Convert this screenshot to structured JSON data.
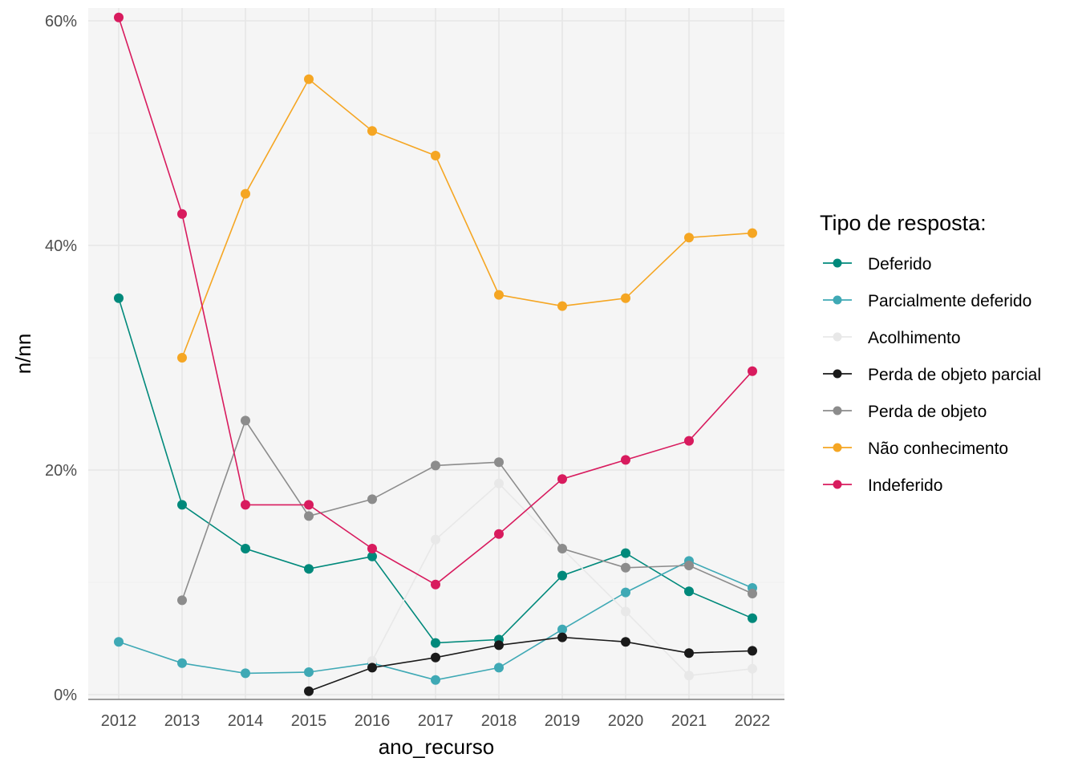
{
  "chart_data": {
    "type": "line",
    "title": "",
    "xlabel": "ano_recurso",
    "ylabel": "n/nn",
    "x": [
      2012,
      2013,
      2014,
      2015,
      2016,
      2017,
      2018,
      2019,
      2020,
      2021,
      2022
    ],
    "x_tick_labels": [
      "2012",
      "2013",
      "2014",
      "2015",
      "2016",
      "2017",
      "2018",
      "2019",
      "2020",
      "2021",
      "2022"
    ],
    "ylim": [
      0,
      0.6
    ],
    "y_ticks": [
      0,
      0.2,
      0.4,
      0.6
    ],
    "y_tick_labels": [
      "0%",
      "20%",
      "40%",
      "60%"
    ],
    "grid": true,
    "legend": {
      "title": "Tipo de resposta:",
      "position": "right"
    },
    "series": [
      {
        "name": "Deferido",
        "color": "#00897b",
        "values": [
          0.353,
          0.169,
          0.13,
          0.112,
          0.123,
          0.046,
          0.049,
          0.106,
          0.126,
          0.092,
          0.068
        ]
      },
      {
        "name": "Parcialmente deferido",
        "color": "#3fa9b5",
        "values": [
          0.047,
          0.028,
          0.019,
          0.02,
          0.028,
          0.013,
          0.024,
          0.058,
          0.091,
          0.119,
          0.095
        ]
      },
      {
        "name": "Acolhimento",
        "color": "#e8e8e8",
        "values": [
          null,
          null,
          null,
          null,
          0.03,
          0.138,
          0.188,
          0.13,
          0.074,
          0.017,
          0.023
        ]
      },
      {
        "name": "Perda de objeto parcial",
        "color": "#1a1a1a",
        "values": [
          null,
          null,
          null,
          0.003,
          0.024,
          0.033,
          0.044,
          0.051,
          0.047,
          0.037,
          0.039
        ]
      },
      {
        "name": "Perda de objeto",
        "color": "#8c8c8c",
        "values": [
          null,
          0.084,
          0.244,
          0.159,
          0.174,
          0.204,
          0.207,
          0.13,
          0.113,
          0.115,
          0.09
        ]
      },
      {
        "name": "Não conhecimento",
        "color": "#f5a623",
        "values": [
          null,
          0.3,
          0.446,
          0.548,
          0.502,
          0.48,
          0.356,
          0.346,
          0.353,
          0.407,
          0.411
        ]
      },
      {
        "name": "Indeferido",
        "color": "#d81b5e",
        "values": [
          0.603,
          0.428,
          0.169,
          0.169,
          0.13,
          0.098,
          0.143,
          0.192,
          0.209,
          0.226,
          0.288
        ]
      }
    ]
  }
}
